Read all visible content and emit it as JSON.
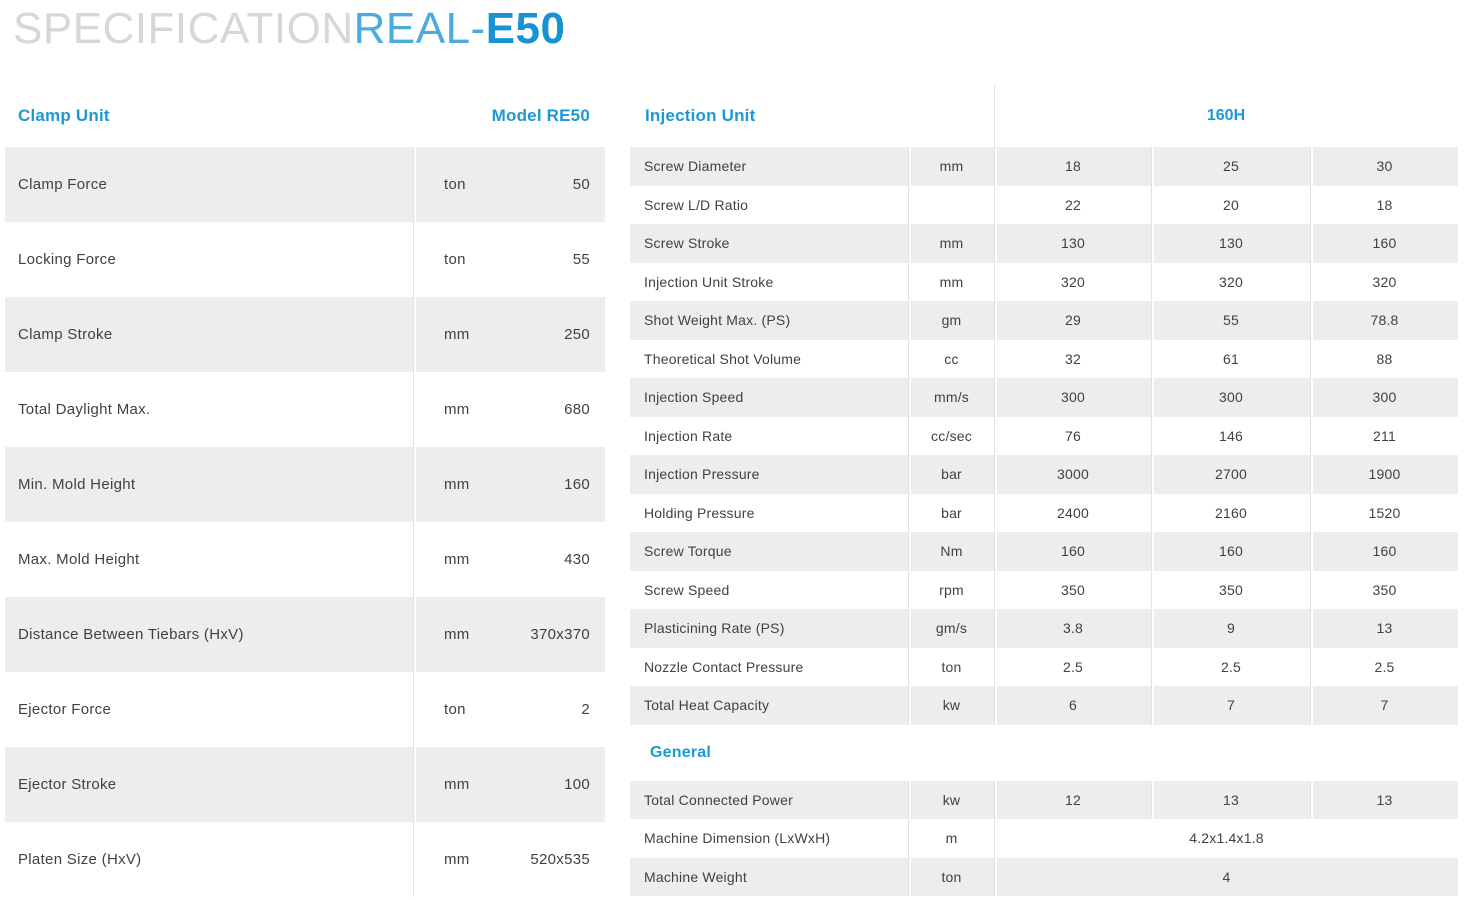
{
  "colors": {
    "accent_blue": "#1793d5",
    "accent_blue_light": "#4babde",
    "title_gray": "#d5d7d8",
    "row_gray": "#ededee",
    "divider_gray": "#e2e2e5",
    "text": "#404144"
  },
  "page_title": {
    "muted": "SPECIFICATION",
    "brand": "REAL-",
    "model": "E50"
  },
  "clamp_table": {
    "header": {
      "title": "Clamp Unit",
      "model": "Model RE50"
    },
    "rows": [
      {
        "label": "Clamp Force",
        "unit": "ton",
        "value": "50"
      },
      {
        "label": "Locking Force",
        "unit": "ton",
        "value": "55"
      },
      {
        "label": "Clamp Stroke",
        "unit": "mm",
        "value": "250"
      },
      {
        "label": "Total Daylight Max.",
        "unit": "mm",
        "value": "680"
      },
      {
        "label": "Min. Mold Height",
        "unit": "mm",
        "value": "160"
      },
      {
        "label": "Max. Mold Height",
        "unit": "mm",
        "value": "430"
      },
      {
        "label": "Distance Between Tiebars (HxV)",
        "unit": "mm",
        "value": "370x370"
      },
      {
        "label": "Ejector Force",
        "unit": "ton",
        "value": "2"
      },
      {
        "label": "Ejector Stroke",
        "unit": "mm",
        "value": "100"
      },
      {
        "label": "Platen Size (HxV)",
        "unit": "mm",
        "value": "520x535"
      }
    ]
  },
  "injection_table": {
    "header": {
      "title": "Injection Unit",
      "model": "160H"
    },
    "rows": [
      {
        "label": "Screw Diameter",
        "unit": "mm",
        "values": [
          "18",
          "25",
          "30"
        ]
      },
      {
        "label": "Screw L/D Ratio",
        "unit": "",
        "values": [
          "22",
          "20",
          "18"
        ]
      },
      {
        "label": "Screw Stroke",
        "unit": "mm",
        "values": [
          "130",
          "130",
          "160"
        ]
      },
      {
        "label": "Injection Unit Stroke",
        "unit": "mm",
        "values": [
          "320",
          "320",
          "320"
        ]
      },
      {
        "label": "Shot Weight Max. (PS)",
        "unit": "gm",
        "values": [
          "29",
          "55",
          "78.8"
        ]
      },
      {
        "label": "Theoretical Shot Volume",
        "unit": "cc",
        "values": [
          "32",
          "61",
          "88"
        ]
      },
      {
        "label": "Injection Speed",
        "unit": "mm/s",
        "values": [
          "300",
          "300",
          "300"
        ]
      },
      {
        "label": "Injection Rate",
        "unit": "cc/sec",
        "values": [
          "76",
          "146",
          "211"
        ]
      },
      {
        "label": "Injection Pressure",
        "unit": "bar",
        "values": [
          "3000",
          "2700",
          "1900"
        ]
      },
      {
        "label": "Holding Pressure",
        "unit": "bar",
        "values": [
          "2400",
          "2160",
          "1520"
        ]
      },
      {
        "label": "Screw Torque",
        "unit": "Nm",
        "values": [
          "160",
          "160",
          "160"
        ]
      },
      {
        "label": "Screw Speed",
        "unit": "rpm",
        "values": [
          "350",
          "350",
          "350"
        ]
      },
      {
        "label": "Plasticining Rate (PS)",
        "unit": "gm/s",
        "values": [
          "3.8",
          "9",
          "13"
        ]
      },
      {
        "label": "Nozzle Contact Pressure",
        "unit": "ton",
        "values": [
          "2.5",
          "2.5",
          "2.5"
        ]
      },
      {
        "label": "Total Heat Capacity",
        "unit": "kw",
        "values": [
          "6",
          "7",
          "7"
        ]
      }
    ]
  },
  "general_section": {
    "title": "General",
    "rows": [
      {
        "label": "Total Connected Power",
        "unit": "kw",
        "values": [
          "12",
          "13",
          "13"
        ]
      },
      {
        "label": "Machine Dimension (LxWxH)",
        "unit": "m",
        "values": [
          "4.2x1.4x1.8"
        ]
      },
      {
        "label": "Machine Weight",
        "unit": "ton",
        "values": [
          "4"
        ]
      }
    ]
  }
}
